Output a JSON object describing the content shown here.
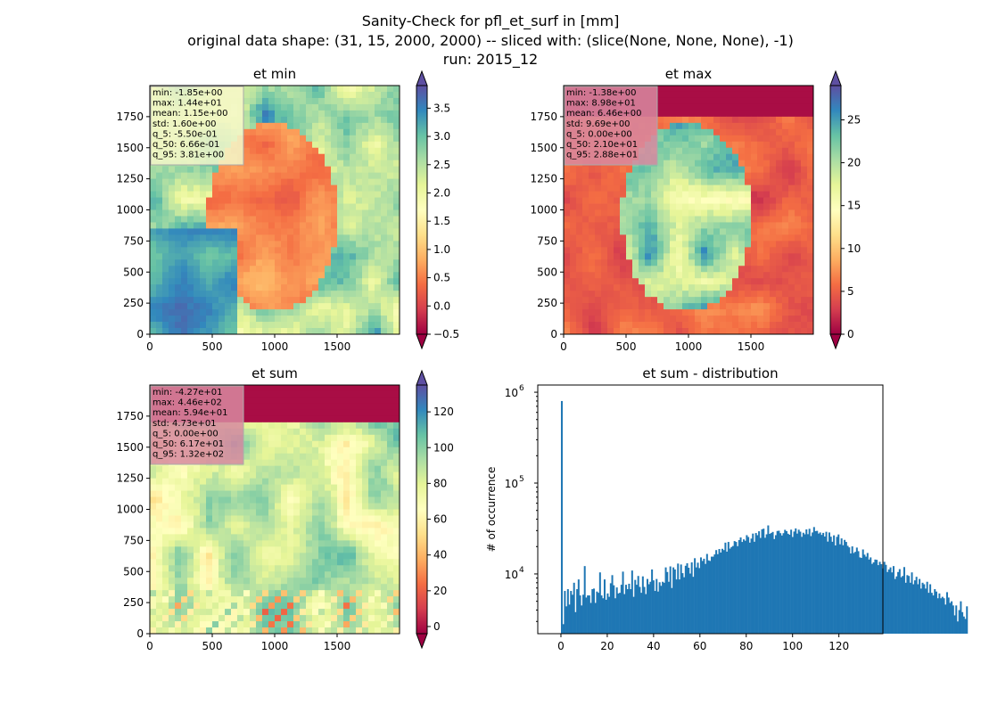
{
  "figure": {
    "title_lines": [
      "Sanity-Check for pfl_et_surf in [mm]",
      "original data shape: (31, 15, 2000, 2000) -- sliced with: (slice(None, None, None), -1)",
      "run: 2015_12"
    ]
  },
  "chart_data": [
    {
      "type": "heatmap",
      "title": "et min",
      "x_ticks": [
        0,
        500,
        1000,
        1500
      ],
      "y_ticks": [
        0,
        250,
        500,
        750,
        1000,
        1250,
        1500,
        1750
      ],
      "xlim": [
        0,
        2000
      ],
      "ylim": [
        0,
        2000
      ],
      "colormap": "Spectral",
      "colorbar": {
        "min": -0.5,
        "max": 3.9,
        "ticks": [
          -0.5,
          0.0,
          0.5,
          1.0,
          1.5,
          2.0,
          2.5,
          3.0,
          3.5
        ],
        "tick_labels": [
          "−0.5",
          "0.0",
          "0.5",
          "1.0",
          "1.5",
          "2.0",
          "2.5",
          "3.0",
          "3.5"
        ],
        "extend": "both"
      },
      "stats": [
        "min: -1.85e+00",
        "max: 1.44e+01",
        "mean: 1.15e+00",
        "std: 1.60e+00",
        "q_5: -5.50e-01",
        "q_50: 6.66e-01",
        "q_95: 3.81e+00"
      ],
      "stats_box_color": "#f3f7c9"
    },
    {
      "type": "heatmap",
      "title": "et max",
      "x_ticks": [
        0,
        500,
        1000,
        1500
      ],
      "y_ticks": [
        0,
        250,
        500,
        750,
        1000,
        1250,
        1500,
        1750
      ],
      "xlim": [
        0,
        2000
      ],
      "ylim": [
        0,
        2000
      ],
      "colormap": "Spectral",
      "colorbar": {
        "min": 0,
        "max": 29,
        "ticks": [
          0,
          5,
          10,
          15,
          20,
          25
        ],
        "tick_labels": [
          "0",
          "5",
          "10",
          "15",
          "20",
          "25"
        ],
        "extend": "both"
      },
      "stats": [
        "min: -1.38e+00",
        "max: 8.98e+01",
        "mean: 6.46e+00",
        "std: 9.69e+00",
        "q_5: 0.00e+00",
        "q_50: 2.10e+01",
        "q_95: 2.88e+01"
      ],
      "stats_box_color": "#d88aa0"
    },
    {
      "type": "heatmap",
      "title": "et sum",
      "x_ticks": [
        0,
        500,
        1000,
        1500
      ],
      "y_ticks": [
        0,
        250,
        500,
        750,
        1000,
        1250,
        1500,
        1750
      ],
      "xlim": [
        0,
        2000
      ],
      "ylim": [
        0,
        2000
      ],
      "colormap": "Spectral",
      "colorbar": {
        "min": -4,
        "max": 135,
        "ticks": [
          0,
          20,
          40,
          60,
          80,
          100,
          120
        ],
        "tick_labels": [
          "0",
          "20",
          "40",
          "60",
          "80",
          "100",
          "120"
        ],
        "extend": "both"
      },
      "stats": [
        "min: -4.27e+01",
        "max: 4.46e+02",
        "mean: 5.94e+01",
        "std: 4.73e+01",
        "q_5: 0.00e+00",
        "q_50: 6.17e+01",
        "q_95: 1.32e+02"
      ],
      "stats_box_color": "#d88aa0"
    },
    {
      "type": "bar",
      "title": "et sum - distribution",
      "ylabel": "# of occurrence",
      "y_scale": "log",
      "x_ticks": [
        0,
        20,
        40,
        60,
        80,
        100,
        120
      ],
      "y_ticks": [
        10000,
        100000,
        1000000
      ],
      "y_tick_labels": [
        [
          "10",
          "4"
        ],
        [
          "10",
          "5"
        ],
        [
          "10",
          "6"
        ]
      ],
      "xlim": [
        -10,
        139
      ],
      "ylim": [
        2200,
        1200000
      ],
      "bar_color": "#1f77b4",
      "bins": {
        "start": 0,
        "width": 0.66
      },
      "values": [
        800000,
        2800,
        6500,
        4400,
        6800,
        4600,
        6500,
        5900,
        8000,
        3800,
        6800,
        8700,
        5800,
        4500,
        5900,
        12200,
        5500,
        5800,
        5800,
        4800,
        6800,
        6900,
        4800,
        6400,
        6200,
        10400,
        5800,
        5400,
        8700,
        5200,
        6100,
        5600,
        7900,
        9700,
        7500,
        5400,
        7100,
        6100,
        6200,
        7600,
        10600,
        6000,
        7600,
        6800,
        7800,
        6800,
        10900,
        5600,
        8600,
        7600,
        9500,
        7200,
        6200,
        9400,
        7200,
        6000,
        8800,
        7700,
        8200,
        11200,
        8500,
        6500,
        8800,
        6400,
        8100,
        7400,
        8200,
        8000,
        11800,
        10500,
        8200,
        12100,
        7000,
        11800,
        11200,
        8700,
        13000,
        8700,
        12700,
        10200,
        9200,
        12300,
        13100,
        11700,
        10100,
        13400,
        9300,
        14900,
        11800,
        13300,
        11600,
        15200,
        13900,
        14700,
        12900,
        16600,
        14100,
        13900,
        15500,
        15500,
        16400,
        18300,
        16500,
        18800,
        17200,
        18900,
        18300,
        22100,
        17600,
        22500,
        19000,
        19800,
        20300,
        23000,
        22500,
        20200,
        23600,
        25200,
        22500,
        24000,
        23200,
        26700,
        25500,
        22100,
        24500,
        27800,
        22600,
        28200,
        26700,
        29500,
        24900,
        31000,
        31500,
        25000,
        27300,
        34200,
        27600,
        28200,
        29000,
        24200,
        26700,
        29700,
        29900,
        28100,
        26500,
        28100,
        30600,
        29600,
        27700,
        27000,
        30700,
        25500,
        29300,
        31700,
        27800,
        30700,
        29200,
        25600,
        28400,
        27300,
        30900,
        27400,
        31400,
        26100,
        28600,
        32800,
        29600,
        29800,
        27800,
        28600,
        26900,
        28300,
        25800,
        29100,
        22700,
        28600,
        25700,
        22600,
        26600,
        20600,
        25600,
        27200,
        21200,
        24600,
        20700,
        23700,
        22500,
        20400,
        19600,
        16800,
        20100,
        17000,
        17500,
        19500,
        17800,
        15200,
        15000,
        18600,
        16300,
        15500,
        17000,
        14400,
        15200,
        12900,
        13400,
        14400,
        14300,
        12500,
        13600,
        12800,
        11500,
        13600,
        12600,
        10500,
        11200,
        11800,
        10400,
        12200,
        8800,
        9400,
        10500,
        11300,
        9200,
        9500,
        11900,
        8000,
        9700,
        9500,
        8000,
        10400,
        7700,
        8500,
        9300,
        7700,
        8800,
        6900,
        8000,
        7700,
        6900,
        8200,
        6200,
        7700,
        6200,
        5800,
        6800,
        6400,
        5400,
        6100,
        5400,
        5600,
        5400,
        4600,
        6300,
        5500,
        4800,
        5000,
        4500,
        3500,
        4500,
        3000,
        4000,
        5000,
        3800,
        3400,
        3200,
        4400
      ]
    }
  ]
}
